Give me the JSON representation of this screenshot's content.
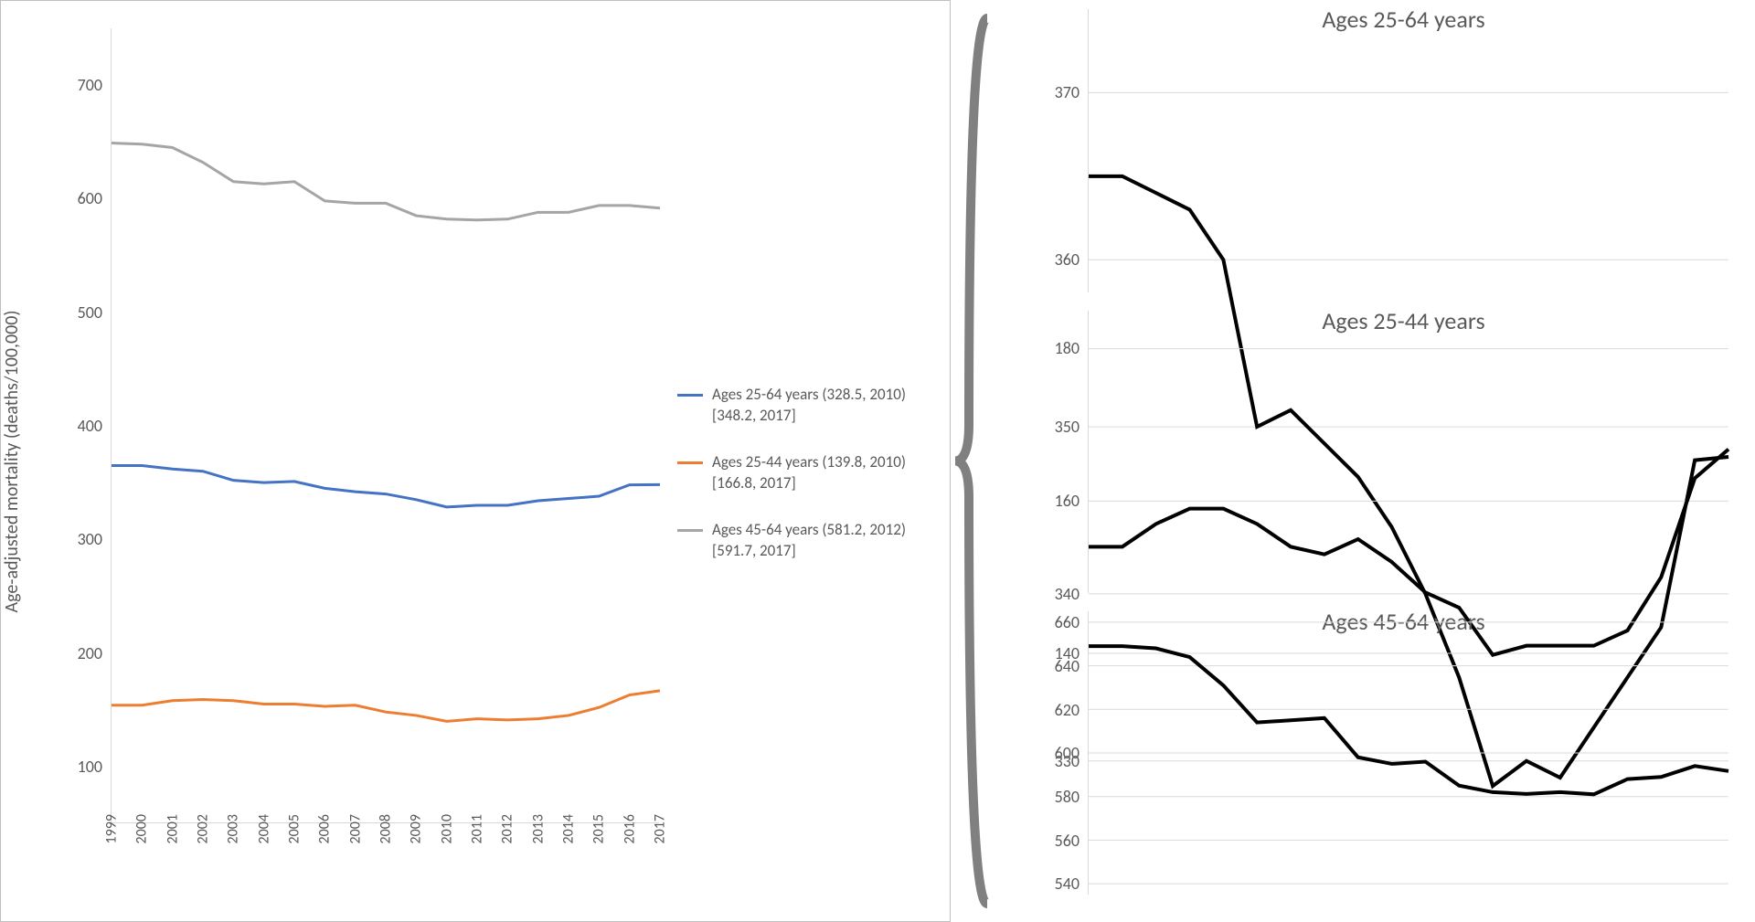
{
  "main_chart": {
    "type": "line",
    "y_axis_label": "Age-adjusted mortality (deaths/100,000)",
    "x_ticks": [
      "1999",
      "2000",
      "2001",
      "2002",
      "2003",
      "2004",
      "2005",
      "2006",
      "2007",
      "2008",
      "2009",
      "2010",
      "2011",
      "2012",
      "2013",
      "2014",
      "2015",
      "2016",
      "2017"
    ],
    "y_ticks": [
      100,
      200,
      300,
      400,
      500,
      600,
      700
    ],
    "y_min": 50,
    "y_max": 750,
    "background_color": "#ffffff",
    "axis_color": "#d9d9d9",
    "text_color": "#595959",
    "line_width": 3,
    "label_fontsize": 18,
    "axis_fontsize": 20,
    "series": [
      {
        "name": "25_64",
        "color": "#4472c4",
        "label_line1": "Ages 25-64 years (328.5, 2010)",
        "label_line2": "[348.2, 2017]",
        "values": [
          365,
          365,
          362,
          360,
          352,
          350,
          351,
          345,
          342,
          340,
          335,
          328.5,
          330,
          330,
          334,
          336,
          338,
          348,
          348.2
        ]
      },
      {
        "name": "25_44",
        "color": "#ed7d31",
        "label_line1": "Ages 25-44 years (139.8, 2010)",
        "label_line2": "[166.8, 2017]",
        "values": [
          154,
          154,
          158,
          159,
          158,
          155,
          155,
          153,
          154,
          148,
          145,
          139.8,
          142,
          141,
          142,
          145,
          152,
          163,
          166.8
        ]
      },
      {
        "name": "45_64",
        "color": "#a5a5a5",
        "label_line1": "Ages 45-64 years (581.2, 2012)",
        "label_line2": "[591.7, 2017]",
        "values": [
          649,
          648,
          645,
          632,
          615,
          613,
          615,
          598,
          596,
          596,
          585,
          582,
          581.2,
          582,
          588,
          588,
          594,
          594,
          591.7
        ]
      }
    ]
  },
  "mini_charts": [
    {
      "title": "Ages 25-64 years",
      "y_ticks": [
        330,
        340,
        350,
        360,
        370
      ],
      "y_min": 322,
      "y_max": 375,
      "color": "#000000",
      "line_width": 4,
      "grid_color": "#d9d9d9",
      "values": [
        365,
        365,
        364,
        363,
        360,
        350,
        351,
        349,
        347,
        344,
        340,
        335,
        328.5,
        330,
        329,
        332,
        335,
        338,
        348,
        348.2
      ]
    },
    {
      "title": "Ages 25-44 years",
      "y_ticks": [
        140,
        160,
        180
      ],
      "y_min": 128,
      "y_max": 185,
      "color": "#000000",
      "line_width": 4,
      "grid_color": "#d9d9d9",
      "values": [
        154,
        154,
        157,
        159,
        159,
        157,
        154,
        153,
        155,
        152,
        148,
        146,
        139.8,
        141,
        141,
        141,
        143,
        150,
        163,
        166.8
      ]
    },
    {
      "title": "Ages 45-64 years",
      "y_ticks": [
        540,
        560,
        580,
        600,
        620,
        640,
        660
      ],
      "y_min": 535,
      "y_max": 665,
      "color": "#000000",
      "line_width": 4,
      "grid_color": "#d9d9d9",
      "values": [
        649,
        649,
        648,
        644,
        631,
        614,
        615,
        616,
        598,
        595,
        596,
        585,
        582,
        581.2,
        582,
        581,
        588,
        589,
        594,
        591.7
      ]
    }
  ],
  "bracket": {
    "color": "#808080"
  }
}
